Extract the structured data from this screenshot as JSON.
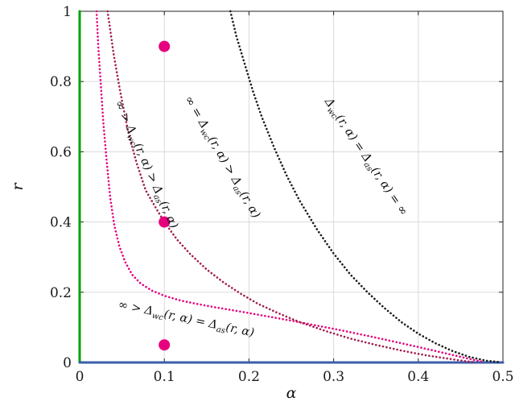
{
  "figure": {
    "background": "#ffffff"
  },
  "colors": {
    "frame": "#222222",
    "grid": "#d6d6d6",
    "tick_text": "#1a1a1a",
    "label_text": "#111111"
  },
  "chart_data": {
    "type": "line",
    "title": "",
    "xlabel": "α",
    "ylabel": "r",
    "xlim": [
      0,
      0.5
    ],
    "ylim": [
      0,
      1
    ],
    "grid": true,
    "legend": "none",
    "x_ticks": [
      0,
      0.1,
      0.2,
      0.3,
      0.4,
      0.5
    ],
    "x_tick_labels": [
      "0",
      "0.1",
      "0.2",
      "0.3",
      "0.4",
      "0.5"
    ],
    "y_ticks": [
      0,
      0.2,
      0.4,
      0.6,
      0.8,
      1
    ],
    "y_tick_labels": [
      "0",
      "0.2",
      "0.4",
      "0.6",
      "0.8",
      "1"
    ],
    "series": [
      {
        "name": "alpha-zero-boundary",
        "color": "#00a100",
        "style": "solid",
        "width": 3,
        "points": [
          [
            0,
            0
          ],
          [
            0,
            1
          ]
        ]
      },
      {
        "name": "r-zero-boundary",
        "color": "#3b5ea9",
        "style": "solid",
        "width": 3,
        "points": [
          [
            0,
            0
          ],
          [
            0.5,
            0
          ]
        ]
      },
      {
        "name": "magenta-threshold-curve",
        "color": "#e6007e",
        "style": "dotted",
        "width": 2.6,
        "points": [
          [
            0.02,
            1.0
          ],
          [
            0.022,
            0.9
          ],
          [
            0.025,
            0.79
          ],
          [
            0.028,
            0.68
          ],
          [
            0.032,
            0.57
          ],
          [
            0.036,
            0.47
          ],
          [
            0.041,
            0.39
          ],
          [
            0.047,
            0.33
          ],
          [
            0.054,
            0.285
          ],
          [
            0.062,
            0.25
          ],
          [
            0.072,
            0.225
          ],
          [
            0.085,
            0.205
          ],
          [
            0.1,
            0.19
          ],
          [
            0.12,
            0.176
          ],
          [
            0.14,
            0.166
          ],
          [
            0.16,
            0.157
          ],
          [
            0.19,
            0.145
          ],
          [
            0.22,
            0.132
          ],
          [
            0.25,
            0.119
          ],
          [
            0.28,
            0.105
          ],
          [
            0.31,
            0.091
          ],
          [
            0.34,
            0.076
          ],
          [
            0.37,
            0.06
          ],
          [
            0.4,
            0.044
          ],
          [
            0.425,
            0.03
          ],
          [
            0.45,
            0.016
          ],
          [
            0.47,
            0.005
          ],
          [
            0.478,
            0.001
          ]
        ]
      },
      {
        "name": "crimson-threshold-curve",
        "color": "#a21c51",
        "style": "dotted",
        "width": 2.6,
        "points": [
          [
            0.033,
            1.0
          ],
          [
            0.04,
            0.88
          ],
          [
            0.048,
            0.77
          ],
          [
            0.057,
            0.66
          ],
          [
            0.067,
            0.57
          ],
          [
            0.078,
            0.49
          ],
          [
            0.09,
            0.44
          ],
          [
            0.1,
            0.4
          ],
          [
            0.115,
            0.35
          ],
          [
            0.13,
            0.31
          ],
          [
            0.15,
            0.265
          ],
          [
            0.17,
            0.228
          ],
          [
            0.19,
            0.196
          ],
          [
            0.21,
            0.168
          ],
          [
            0.235,
            0.14
          ],
          [
            0.26,
            0.115
          ],
          [
            0.29,
            0.09
          ],
          [
            0.32,
            0.068
          ],
          [
            0.35,
            0.05
          ],
          [
            0.38,
            0.034
          ],
          [
            0.41,
            0.02
          ],
          [
            0.435,
            0.011
          ],
          [
            0.455,
            0.004
          ],
          [
            0.466,
            0.001
          ]
        ]
      },
      {
        "name": "black-threshold-curve",
        "color": "#1a1a1a",
        "style": "dotted",
        "width": 2.6,
        "points": [
          [
            0.178,
            1.0
          ],
          [
            0.185,
            0.93
          ],
          [
            0.195,
            0.85
          ],
          [
            0.205,
            0.77
          ],
          [
            0.215,
            0.7
          ],
          [
            0.23,
            0.61
          ],
          [
            0.245,
            0.53
          ],
          [
            0.26,
            0.46
          ],
          [
            0.28,
            0.38
          ],
          [
            0.3,
            0.31
          ],
          [
            0.32,
            0.25
          ],
          [
            0.34,
            0.2
          ],
          [
            0.36,
            0.155
          ],
          [
            0.38,
            0.115
          ],
          [
            0.4,
            0.082
          ],
          [
            0.42,
            0.055
          ],
          [
            0.44,
            0.033
          ],
          [
            0.46,
            0.016
          ],
          [
            0.48,
            0.005
          ],
          [
            0.497,
            0.001
          ]
        ]
      }
    ],
    "markers": {
      "name": "sample-points",
      "color": "#e6007e",
      "radius": 7,
      "points": [
        [
          0.1,
          0.9
        ],
        [
          0.1,
          0.4
        ],
        [
          0.1,
          0.05
        ]
      ]
    },
    "region_labels": [
      {
        "name": "region-label-wc-gt-as-finite",
        "x": 0.075,
        "y": 0.56,
        "rotation": 66,
        "plain": "∞ > Δwc(r, α) > Δas(r, α)",
        "segments": [
          {
            "t": "∞ > Δ"
          },
          {
            "t": "wc",
            "sub": true
          },
          {
            "t": "(r, α) > Δ"
          },
          {
            "t": "as",
            "sub": true
          },
          {
            "t": "(r, α)"
          }
        ]
      },
      {
        "name": "region-label-wc-inf-gt-as",
        "x": 0.165,
        "y": 0.58,
        "rotation": 60,
        "plain": "∞ = Δwc(r, α) > Δas(r, α)",
        "segments": [
          {
            "t": "∞ = Δ"
          },
          {
            "t": "wc",
            "sub": true
          },
          {
            "t": "(r, α) > Δ"
          },
          {
            "t": "as",
            "sub": true
          },
          {
            "t": "(r, α)"
          }
        ]
      },
      {
        "name": "region-label-both-infinite",
        "x": 0.335,
        "y": 0.58,
        "rotation": 56,
        "plain": "Δwc(r, α) = Δas(r, α) = ∞",
        "segments": [
          {
            "t": "Δ"
          },
          {
            "t": "wc",
            "sub": true
          },
          {
            "t": "(r, α) = Δ"
          },
          {
            "t": "as",
            "sub": true
          },
          {
            "t": "(r, α) = ∞"
          }
        ]
      },
      {
        "name": "region-label-both-finite-equal",
        "x": 0.125,
        "y": 0.115,
        "rotation": 12,
        "plain": "∞ > Δwc(r, α) = Δas(r, α)",
        "segments": [
          {
            "t": "∞ > Δ"
          },
          {
            "t": "wc",
            "sub": true
          },
          {
            "t": "(r, α) = Δ"
          },
          {
            "t": "as",
            "sub": true
          },
          {
            "t": "(r, α)"
          }
        ]
      }
    ]
  }
}
